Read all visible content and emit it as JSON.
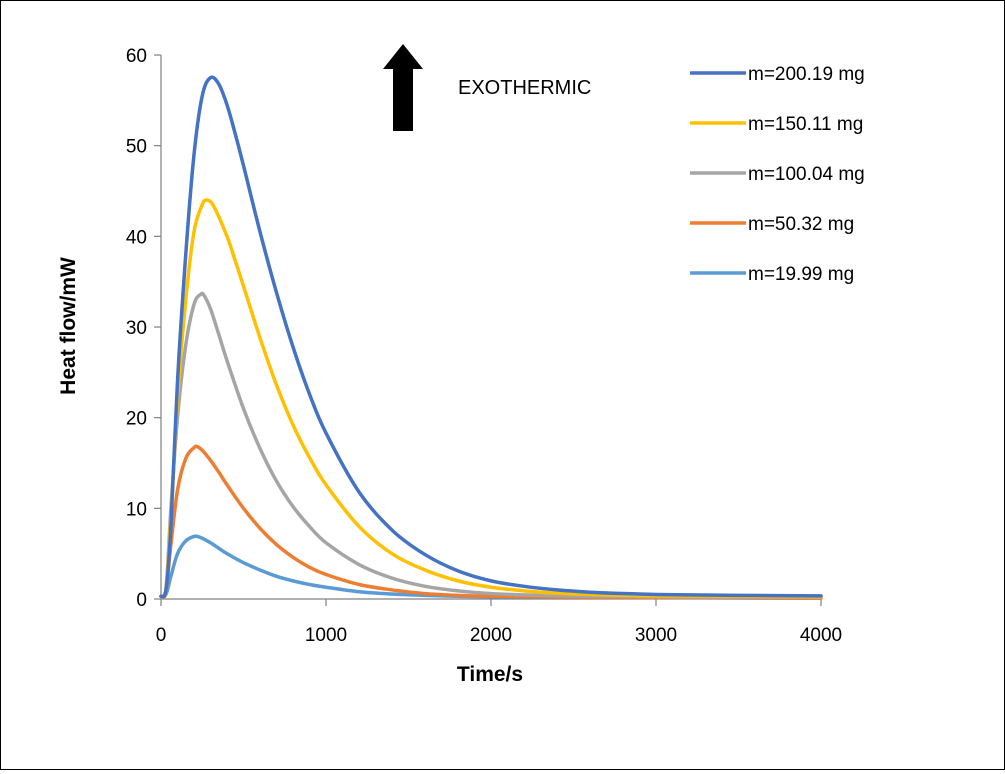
{
  "chart_data": {
    "type": "line",
    "xlabel": "Time/s",
    "ylabel": "Heat flow/mW",
    "xlim": [
      0,
      4000
    ],
    "ylim": [
      0,
      60
    ],
    "xticks": [
      "0",
      "1000",
      "2000",
      "3000",
      "4000"
    ],
    "yticks": [
      "0",
      "10",
      "20",
      "30",
      "40",
      "50",
      "60"
    ],
    "grid": false,
    "legend": "top-right",
    "annotation": {
      "text": "EXOTHERMIC",
      "arrow": "up-arrow-icon"
    },
    "series": [
      {
        "name": "m=200.19 mg",
        "color": "#4472C4",
        "x": [
          0,
          30,
          60,
          100,
          150,
          200,
          250,
          300,
          350,
          400,
          450,
          500,
          600,
          700,
          800,
          900,
          1000,
          1200,
          1400,
          1600,
          1800,
          2000,
          2200,
          2400,
          2600,
          2800,
          3000,
          3200,
          3500,
          4000
        ],
        "y": [
          0.3,
          1.0,
          8,
          24,
          38,
          49,
          55.5,
          57.5,
          56.8,
          54.5,
          51.3,
          47.8,
          40.5,
          33.8,
          27.8,
          22.6,
          18.3,
          11.8,
          7.6,
          4.9,
          3.1,
          2.0,
          1.4,
          1.0,
          0.75,
          0.6,
          0.5,
          0.45,
          0.4,
          0.35
        ]
      },
      {
        "name": "m=150.11 mg",
        "color": "#FFC000",
        "x": [
          0,
          30,
          60,
          100,
          150,
          200,
          250,
          280,
          320,
          400,
          450,
          500,
          600,
          700,
          800,
          900,
          1000,
          1200,
          1400,
          1600,
          1800,
          2000,
          2200,
          2400,
          2600,
          2800,
          3000,
          3500,
          4000
        ],
        "y": [
          0.3,
          1.0,
          9,
          22,
          33,
          40.5,
          43.5,
          44.0,
          43.3,
          40.0,
          37.3,
          34.5,
          28.8,
          23.6,
          19.2,
          15.6,
          12.6,
          8.0,
          5.0,
          3.2,
          2.0,
          1.3,
          0.9,
          0.65,
          0.5,
          0.4,
          0.35,
          0.3,
          0.25
        ]
      },
      {
        "name": "m=100.04 mg",
        "color": "#A5A5A5",
        "x": [
          0,
          30,
          60,
          100,
          150,
          200,
          240,
          260,
          300,
          350,
          400,
          500,
          600,
          700,
          800,
          900,
          1000,
          1200,
          1400,
          1600,
          1800,
          2000,
          2200,
          2400,
          2600,
          3000,
          3500,
          4000
        ],
        "y": [
          0.3,
          1.0,
          10,
          20,
          28,
          32.5,
          33.6,
          33.5,
          32.0,
          29.2,
          26.3,
          21.0,
          16.6,
          13.0,
          10.2,
          8.0,
          6.2,
          3.8,
          2.3,
          1.4,
          0.9,
          0.6,
          0.45,
          0.35,
          0.3,
          0.25,
          0.2,
          0.2
        ]
      },
      {
        "name": "m=50.32 mg",
        "color": "#ED7D31",
        "x": [
          0,
          30,
          60,
          100,
          150,
          200,
          220,
          250,
          300,
          350,
          400,
          500,
          600,
          700,
          800,
          900,
          1000,
          1200,
          1400,
          1600,
          1800,
          2000,
          2500,
          3000,
          3500,
          4000
        ],
        "y": [
          0.3,
          1.0,
          6,
          12,
          15.5,
          16.7,
          16.8,
          16.4,
          15.3,
          14.0,
          12.6,
          10.0,
          7.8,
          6.0,
          4.6,
          3.5,
          2.7,
          1.6,
          1.0,
          0.6,
          0.4,
          0.3,
          0.2,
          0.15,
          0.12,
          0.1
        ]
      },
      {
        "name": "m=19.99 mg",
        "color": "#5B9BD5",
        "x": [
          0,
          30,
          60,
          100,
          150,
          200,
          220,
          250,
          300,
          350,
          400,
          500,
          600,
          700,
          800,
          900,
          1000,
          1200,
          1400,
          1600,
          1800,
          2000,
          2500,
          3000,
          3500,
          4000
        ],
        "y": [
          0.3,
          0.5,
          2.5,
          5.0,
          6.4,
          6.9,
          6.9,
          6.7,
          6.2,
          5.6,
          5.0,
          4.0,
          3.2,
          2.5,
          2.0,
          1.6,
          1.3,
          0.8,
          0.55,
          0.4,
          0.3,
          0.25,
          0.2,
          0.15,
          0.12,
          0.1
        ]
      }
    ]
  }
}
